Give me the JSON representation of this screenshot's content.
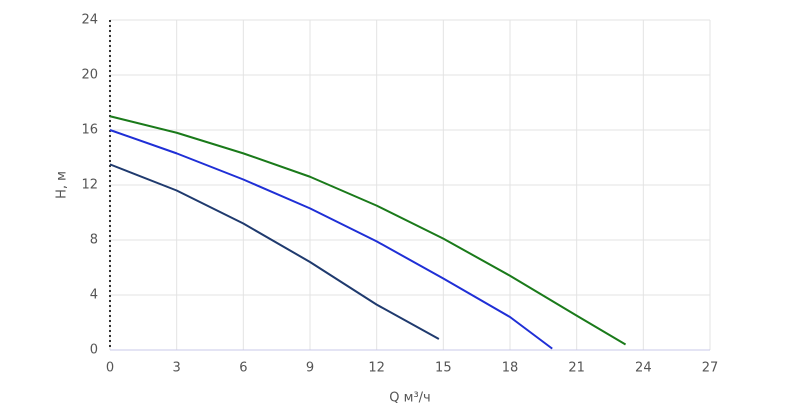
{
  "chart_data": {
    "type": "line",
    "xlabel": "Q м³/ч",
    "ylabel": "H, м",
    "xlim": [
      0,
      27
    ],
    "xticks": [
      0,
      3,
      6,
      9,
      12,
      15,
      18,
      21,
      24,
      27
    ],
    "ylim": [
      0,
      24
    ],
    "yticks": [
      0,
      4,
      8,
      12,
      16,
      20,
      24
    ],
    "grid": true,
    "series": [
      {
        "color": "#1f3a6e",
        "x": [
          0,
          3,
          6,
          9,
          12,
          14.8
        ],
        "values": [
          13.5,
          11.6,
          9.2,
          6.4,
          3.3,
          0.8
        ]
      },
      {
        "color": "#1f2fd6",
        "x": [
          0,
          3,
          6,
          9,
          12,
          15,
          18,
          19.9
        ],
        "values": [
          16,
          14.3,
          12.4,
          10.3,
          7.9,
          5.2,
          2.4,
          0.1
        ]
      },
      {
        "color": "#1a7a1a",
        "x": [
          0,
          3,
          6,
          9,
          12,
          15,
          18,
          21,
          23.2
        ],
        "values": [
          17,
          15.8,
          14.3,
          12.6,
          10.5,
          8.1,
          5.4,
          2.5,
          0.4
        ]
      }
    ]
  }
}
